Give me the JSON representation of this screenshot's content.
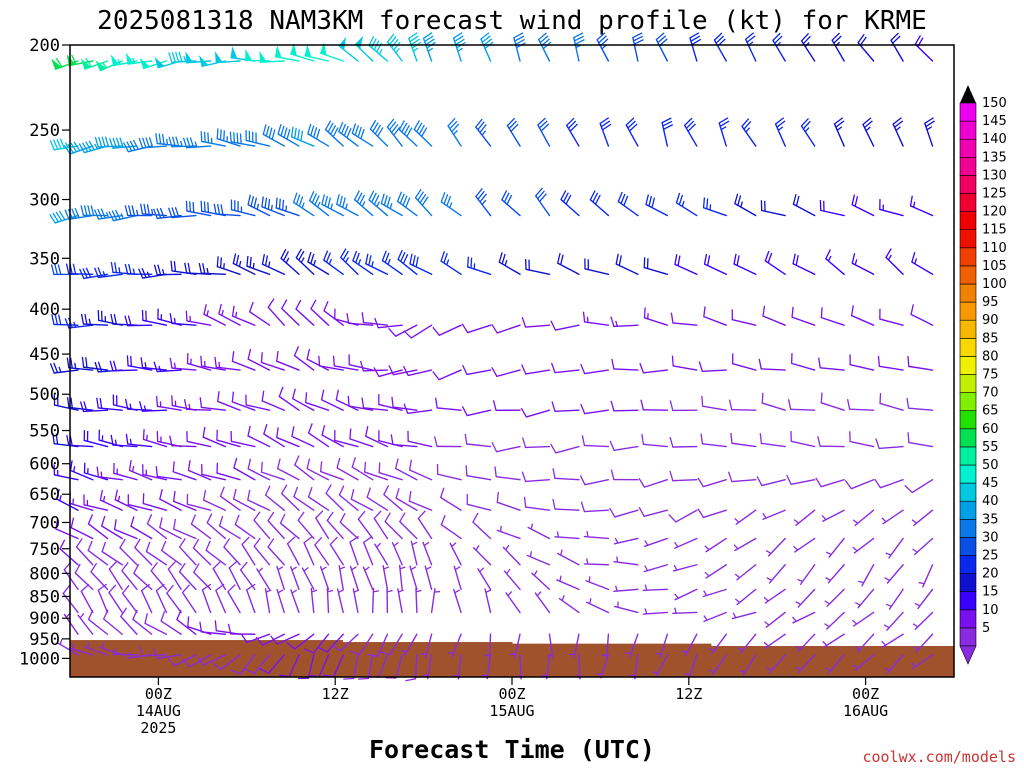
{
  "title": "2025081318 NAM3KM forecast wind profile (kt) for KRME",
  "credit": "coolwx.com/models",
  "chart_data": {
    "type": "wind-barb time-height profile",
    "title": "2025081318 NAM3KM forecast wind profile (kt) for KRME",
    "xlabel": "Forecast Time (UTC)",
    "ylabel": "",
    "y_ticks": [
      "200",
      "250",
      "300",
      "350",
      "400",
      "450",
      "500",
      "550",
      "600",
      "650",
      "700",
      "750",
      "800",
      "850",
      "900",
      "950",
      "1000"
    ],
    "y_log_scale": true,
    "ylim": [
      200,
      1050
    ],
    "x_ticks": [
      {
        "hour": 6,
        "line1": "00Z",
        "line2": "14AUG",
        "line3": "2025"
      },
      {
        "hour": 18,
        "line1": "12Z",
        "line2": "",
        "line3": ""
      },
      {
        "hour": 30,
        "line1": "00Z",
        "line2": "15AUG",
        "line3": ""
      },
      {
        "hour": 42,
        "line1": "12Z",
        "line2": "",
        "line3": ""
      },
      {
        "hour": 54,
        "line1": "00Z",
        "line2": "16AUG",
        "line3": ""
      }
    ],
    "xlim": [
      0,
      60
    ],
    "hourly_until": 24,
    "step_after": 2,
    "last_hour": 60,
    "levels": [
      200,
      250,
      300,
      350,
      400,
      450,
      500,
      550,
      600,
      650,
      700,
      750,
      800,
      850,
      900,
      950
    ],
    "wind_keyframes_speed_kt": [
      [
        62,
        47,
        52,
        44,
        38,
        30,
        26,
        18
      ],
      [
        45,
        35,
        40,
        38,
        30,
        28,
        26,
        22
      ],
      [
        40,
        30,
        35,
        38,
        30,
        28,
        22,
        15
      ],
      [
        30,
        22,
        24,
        28,
        22,
        20,
        18,
        15
      ],
      [
        28,
        15,
        10,
        10,
        12,
        13,
        10,
        10
      ],
      [
        24,
        14,
        10,
        10,
        10,
        11,
        10,
        10
      ],
      [
        22,
        13,
        10,
        11,
        10,
        10,
        9,
        9
      ],
      [
        20,
        12,
        10,
        10,
        9,
        9,
        8,
        8
      ],
      [
        17,
        11,
        9,
        9,
        8,
        9,
        8,
        8
      ],
      [
        15,
        10,
        9,
        8,
        8,
        8,
        7,
        7
      ],
      [
        12,
        9,
        9,
        8,
        7,
        7,
        7,
        7
      ],
      [
        10,
        9,
        8,
        7,
        7,
        6,
        6,
        6
      ],
      [
        9,
        8,
        7,
        7,
        6,
        6,
        6,
        6
      ],
      [
        8,
        8,
        7,
        6,
        6,
        6,
        6,
        6
      ],
      [
        7,
        10,
        12,
        6,
        5,
        5,
        5,
        5
      ],
      [
        6,
        8,
        11,
        7,
        6,
        5,
        5,
        5
      ]
    ],
    "wind_keyframes_dir_deg": [
      [
        250,
        260,
        280,
        340,
        340,
        340,
        330,
        320
      ],
      [
        255,
        270,
        300,
        320,
        330,
        340,
        330,
        340
      ],
      [
        260,
        270,
        300,
        310,
        320,
        300,
        290,
        290
      ],
      [
        265,
        270,
        310,
        300,
        290,
        290,
        300,
        310
      ],
      [
        270,
        280,
        320,
        240,
        260,
        280,
        290,
        290
      ],
      [
        270,
        275,
        300,
        250,
        260,
        270,
        280,
        280
      ],
      [
        275,
        275,
        300,
        270,
        260,
        270,
        280,
        280
      ],
      [
        280,
        280,
        300,
        280,
        260,
        270,
        280,
        270
      ],
      [
        285,
        285,
        300,
        290,
        270,
        260,
        260,
        240
      ],
      [
        290,
        290,
        310,
        300,
        280,
        250,
        240,
        230
      ],
      [
        300,
        300,
        320,
        320,
        290,
        250,
        230,
        220
      ],
      [
        310,
        310,
        330,
        340,
        300,
        260,
        220,
        210
      ],
      [
        320,
        320,
        340,
        350,
        310,
        260,
        230,
        210
      ],
      [
        330,
        330,
        350,
        360,
        320,
        270,
        240,
        220
      ],
      [
        320,
        300,
        230,
        200,
        180,
        200,
        230,
        230
      ],
      [
        300,
        250,
        200,
        190,
        180,
        200,
        220,
        230
      ]
    ],
    "terrain_pressure_segments": [
      {
        "x0": 0,
        "x1": 18.5,
        "p": 953
      },
      {
        "x0": 18.5,
        "x1": 30,
        "p": 958
      },
      {
        "x0": 30,
        "x1": 43.5,
        "p": 962
      },
      {
        "x0": 43.5,
        "x1": 60,
        "p": 968
      }
    ],
    "terrain_color": "#a0522d",
    "colorbar": {
      "labels": [
        "5",
        "10",
        "15",
        "20",
        "25",
        "30",
        "35",
        "40",
        "45",
        "50",
        "55",
        "60",
        "65",
        "70",
        "75",
        "80",
        "85",
        "90",
        "95",
        "100",
        "105",
        "110",
        "115",
        "120",
        "125",
        "130",
        "135",
        "140",
        "145",
        "150"
      ],
      "colors": [
        "#8a2be2",
        "#7a10f0",
        "#3a00ff",
        "#1010d0",
        "#0a28f0",
        "#0a50e6",
        "#0a78e8",
        "#00a0e6",
        "#00c8e0",
        "#00f0d0",
        "#00f0a0",
        "#00e050",
        "#20e000",
        "#80f000",
        "#c0f000",
        "#f0f000",
        "#f8d800",
        "#f8b800",
        "#f89800",
        "#f08000",
        "#f06000",
        "#f04000",
        "#f01000",
        "#f00000",
        "#f00030",
        "#f00060",
        "#f00090",
        "#f000b0",
        "#f000d0",
        "#f000f0"
      ],
      "top_arrow_color": "#000000",
      "bottom_arrow_color": "#8a2be2"
    }
  }
}
